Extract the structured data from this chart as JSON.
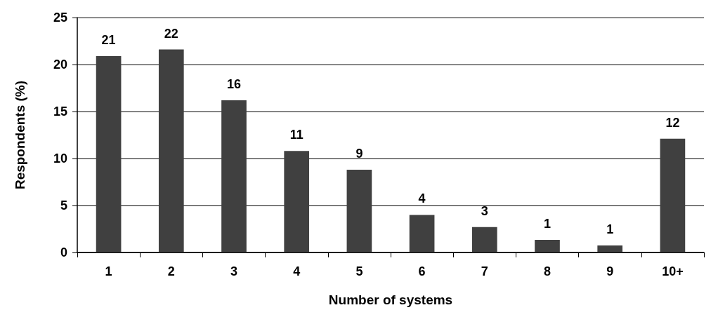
{
  "chart_data": {
    "type": "bar",
    "xlabel": "Number of systems",
    "ylabel": "Respondents (%)",
    "categories": [
      "1",
      "2",
      "3",
      "4",
      "5",
      "6",
      "7",
      "8",
      "9",
      "10+"
    ],
    "values": [
      20.9,
      21.6,
      16.2,
      10.8,
      8.8,
      4.0,
      2.7,
      1.35,
      0.75,
      12.1
    ],
    "value_labels": [
      "21",
      "22",
      "16",
      "11",
      "9",
      "4",
      "3",
      "1",
      "1",
      "12"
    ],
    "color": "#404040",
    "ylim": [
      0,
      25
    ],
    "yticks": [
      0,
      5,
      10,
      15,
      20,
      25
    ],
    "grid": "y"
  }
}
